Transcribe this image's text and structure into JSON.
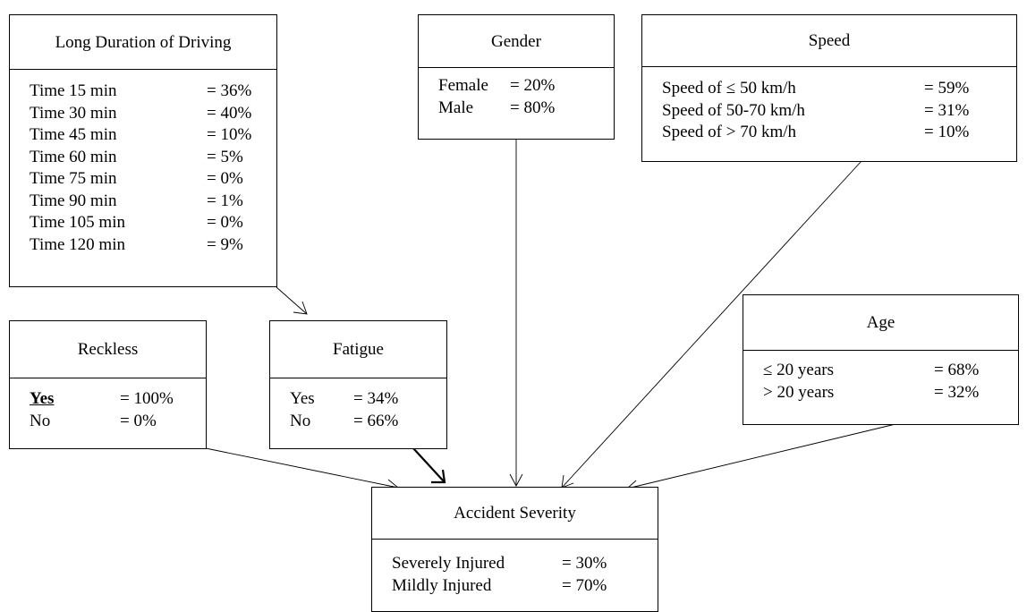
{
  "nodes": {
    "duration": {
      "title": "Long Duration of Driving",
      "states": [
        {
          "label": "Time 15 min",
          "value": "= 36%"
        },
        {
          "label": "Time 30 min",
          "value": "= 40%"
        },
        {
          "label": "Time 45 min",
          "value": "= 10%"
        },
        {
          "label": "Time 60 min",
          "value": "= 5%"
        },
        {
          "label": "Time 75 min",
          "value": "= 0%"
        },
        {
          "label": "Time 90 min",
          "value": "= 1%"
        },
        {
          "label": "Time 105 min",
          "value": "= 0%"
        },
        {
          "label": "Time 120 min",
          "value": "= 9%"
        }
      ]
    },
    "gender": {
      "title": "Gender",
      "states": [
        {
          "label": "Female",
          "value": "= 20%"
        },
        {
          "label": "Male",
          "value": "= 80%"
        }
      ]
    },
    "speed": {
      "title": "Speed",
      "states": [
        {
          "label": "Speed of ≤ 50 km/h",
          "value": "= 59%"
        },
        {
          "label": "Speed of 50-70 km/h",
          "value": "= 31%"
        },
        {
          "label": "Speed of > 70 km/h",
          "value": "= 10%"
        }
      ]
    },
    "reckless": {
      "title": "Reckless",
      "states": [
        {
          "label": "Yes",
          "value": "= 100%"
        },
        {
          "label": "No",
          "value": "= 0%"
        }
      ]
    },
    "fatigue": {
      "title": "Fatigue",
      "states": [
        {
          "label": "Yes",
          "value": "= 34%"
        },
        {
          "label": "No",
          "value": "= 66%"
        }
      ]
    },
    "age": {
      "title": "Age",
      "states": [
        {
          "label": "≤ 20 years",
          "value": "= 68%"
        },
        {
          "label": "> 20 years",
          "value": "= 32%"
        }
      ]
    },
    "severity": {
      "title": "Accident Severity",
      "states": [
        {
          "label": "Severely Injured",
          "value": "= 30%"
        },
        {
          "label": "Mildly Injured",
          "value": "= 70%"
        }
      ]
    }
  },
  "edges": [
    {
      "from": "duration",
      "to": "fatigue"
    },
    {
      "from": "reckless",
      "to": "severity"
    },
    {
      "from": "fatigue",
      "to": "severity",
      "emphasis": true
    },
    {
      "from": "gender",
      "to": "severity"
    },
    {
      "from": "speed",
      "to": "severity"
    },
    {
      "from": "age",
      "to": "severity"
    }
  ]
}
